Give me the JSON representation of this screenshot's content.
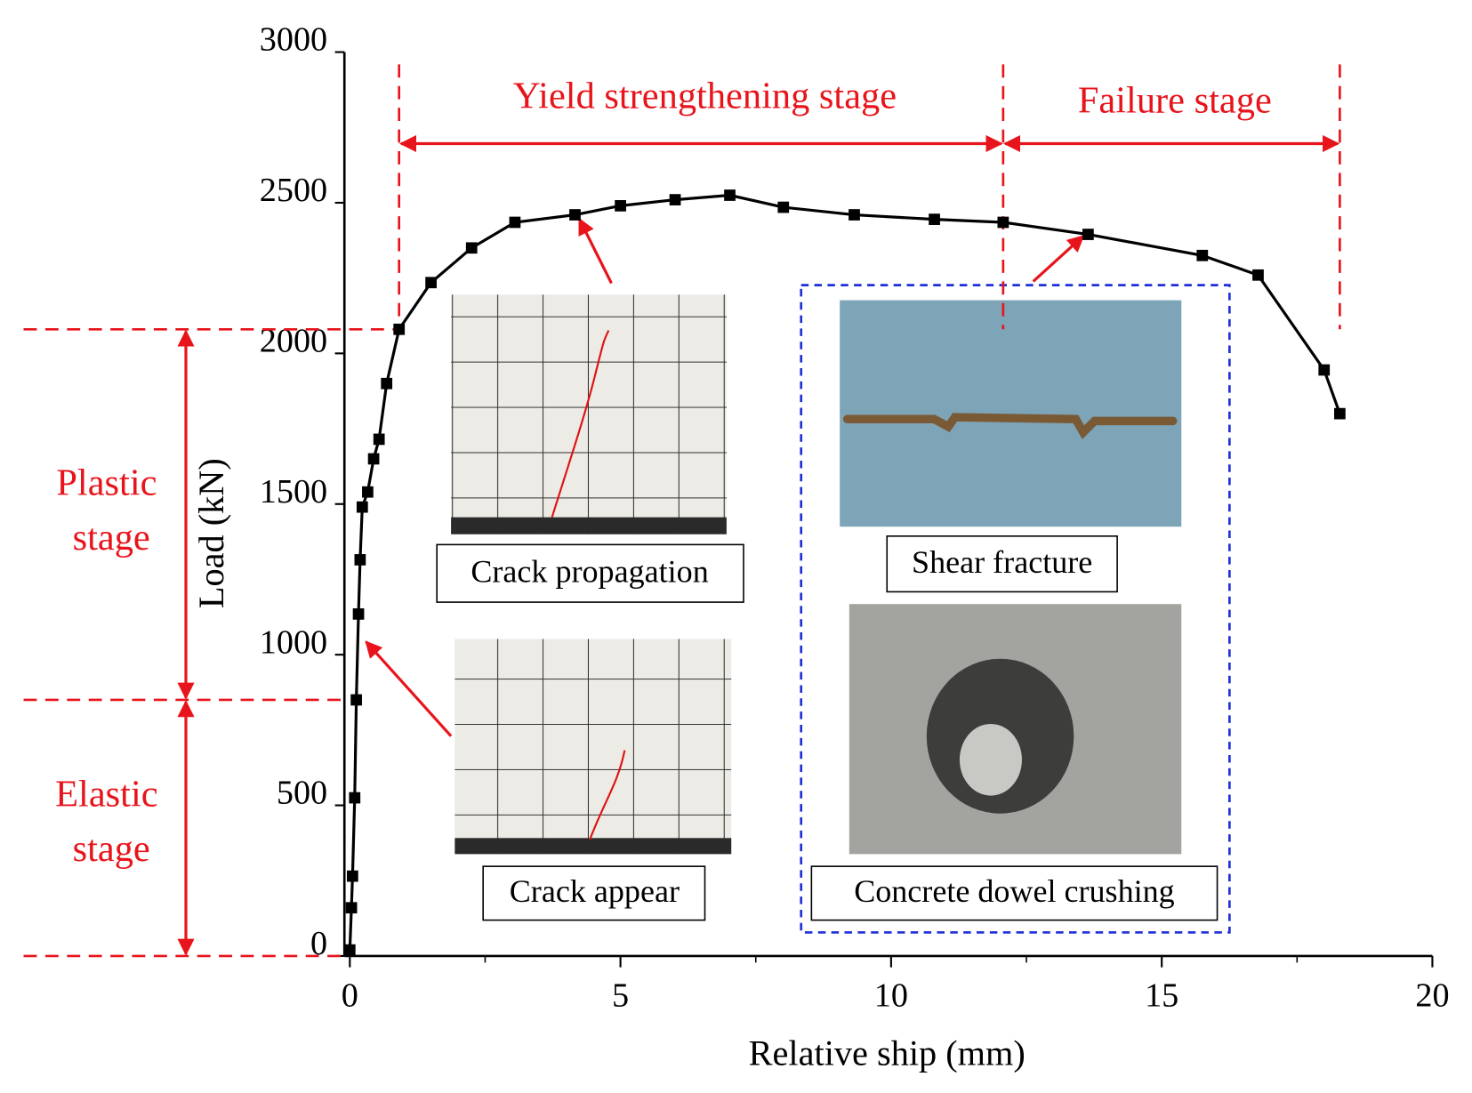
{
  "chart_data": {
    "type": "line",
    "xlabel": "Relative ship (mm)",
    "ylabel": "Load (kN)",
    "xlim": [
      -0.1,
      20
    ],
    "ylim": [
      0,
      3000
    ],
    "xticks": [
      0,
      5,
      10,
      15,
      20
    ],
    "yticks": [
      0,
      500,
      1000,
      1500,
      2000,
      2500,
      3000
    ],
    "series": [
      {
        "color": "#000000",
        "x": [
          0,
          0.03,
          0.05,
          0.09,
          0.12,
          0.16,
          0.19,
          0.23,
          0.33,
          0.44,
          0.54,
          0.68,
          0.91,
          1.5,
          2.25,
          3.05,
          4.16,
          5.0,
          6.01,
          7.02,
          8.01,
          9.32,
          10.8,
          12.07,
          13.64,
          15.75,
          16.78,
          18.0,
          18.29
        ],
        "values": [
          20,
          160,
          265,
          525,
          850,
          1135,
          1315,
          1490,
          1540,
          1650,
          1715,
          1900,
          2080,
          2235,
          2350,
          2435,
          2460,
          2490,
          2510,
          2525,
          2485,
          2460,
          2445,
          2435,
          2395,
          2325,
          2260,
          1945,
          1800
        ]
      }
    ],
    "annotations": [
      "Yield strengthening stage",
      "Failure stage",
      "Plastic stage",
      "Elastic stage",
      "Crack propagation",
      "Crack appear",
      "Shear fracture",
      "Concrete dowel crushing"
    ]
  }
}
